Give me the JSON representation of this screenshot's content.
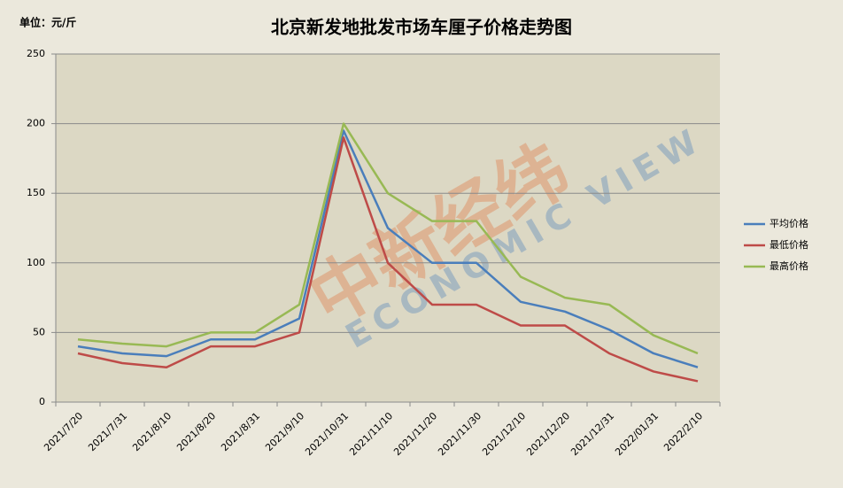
{
  "chart_data": {
    "type": "line",
    "title": "北京新发地批发市场车厘子价格走势图",
    "unit_label": "单位：元/斤",
    "watermark": [
      "中新经纬",
      "ECONOMIC VIEW"
    ],
    "categories": [
      "2021/7/20",
      "2021/7/31",
      "2021/8/10",
      "2021/8/20",
      "2021/8/31",
      "2021/9/10",
      "2021/10/31",
      "2021/11/10",
      "2021/11/20",
      "2021/11/30",
      "2021/12/10",
      "2021/12/20",
      "2021/12/31",
      "2022/01/31",
      "2022/2/10"
    ],
    "series": [
      {
        "name": "平均价格",
        "color": "#4a7ebb",
        "values": [
          40,
          35,
          33,
          45,
          45,
          60,
          195,
          125,
          100,
          100,
          72,
          65,
          52,
          35,
          25
        ]
      },
      {
        "name": "最低价格",
        "color": "#be4b48",
        "values": [
          35,
          28,
          25,
          40,
          40,
          50,
          190,
          100,
          70,
          70,
          55,
          55,
          35,
          22,
          15
        ]
      },
      {
        "name": "最高价格",
        "color": "#98b954",
        "values": [
          45,
          42,
          40,
          50,
          50,
          70,
          200,
          150,
          130,
          130,
          90,
          75,
          70,
          48,
          35
        ]
      }
    ],
    "ylim": [
      0,
      250
    ],
    "yticks": [
      0,
      50,
      100,
      150,
      200,
      250
    ],
    "grid": true,
    "legend": "right"
  }
}
